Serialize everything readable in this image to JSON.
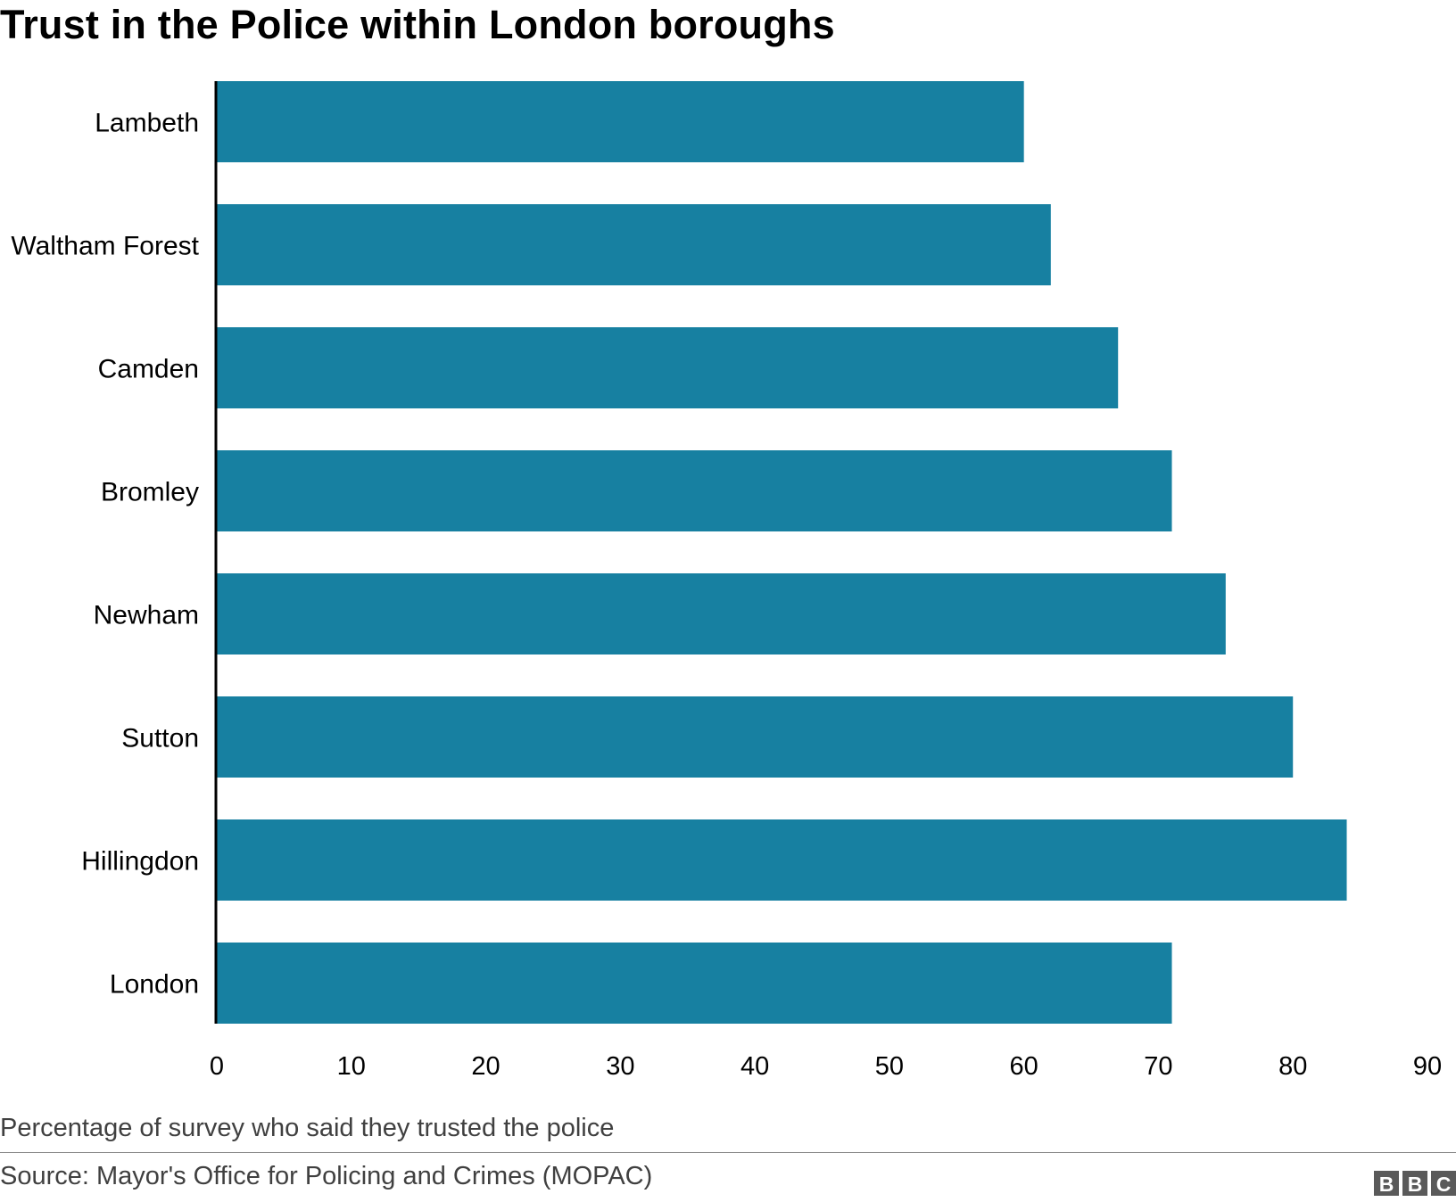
{
  "title": "Trust in the Police within London boroughs",
  "axis_note": "Percentage of survey who said they trusted the police",
  "source": "Source: Mayor's Office for Policing and Crimes (MOPAC)",
  "logo_text": "BBC",
  "colors": {
    "bar": "#1780a1",
    "axis": "#000000",
    "text": "#000000",
    "muted": "#404040"
  },
  "chart_data": {
    "type": "bar",
    "orientation": "horizontal",
    "categories": [
      "Lambeth",
      "Waltham Forest",
      "Camden",
      "Bromley",
      "Newham",
      "Sutton",
      "Hillingdon",
      "London"
    ],
    "values": [
      60,
      62,
      67,
      71,
      75,
      80,
      84,
      71
    ],
    "xticks": [
      0,
      10,
      20,
      30,
      40,
      50,
      60,
      70,
      80,
      90
    ],
    "xlim": [
      0,
      90
    ],
    "grid": false,
    "legend": false
  }
}
